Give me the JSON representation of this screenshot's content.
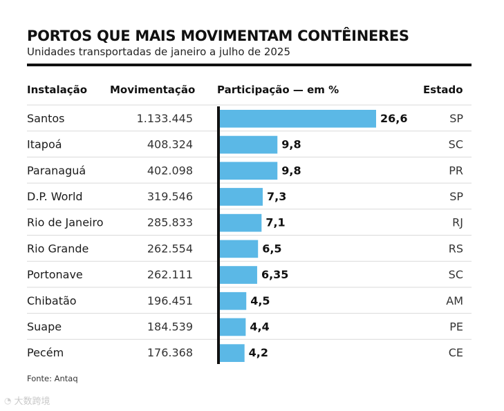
{
  "header": {
    "title": "PORTOS QUE MAIS MOVIMENTAM CONTÊINERES",
    "subtitle": "Unidades transportadas de janeiro a julho de 2025"
  },
  "columns": {
    "installation": "Instalação",
    "movement": "Movimentação",
    "share": "Participação — em %",
    "state": "Estado"
  },
  "chart_data": {
    "type": "bar",
    "orientation": "horizontal",
    "title": "PORTOS QUE MAIS MOVIMENTAM CONTÊINERES",
    "subtitle": "Unidades transportadas de janeiro a julho de 2025",
    "xlabel": "Participação — em %",
    "categories": [
      "Santos",
      "Itapoá",
      "Paranaguá",
      "D.P. World",
      "Rio de Janeiro",
      "Rio Grande",
      "Portonave",
      "Chibatão",
      "Suape",
      "Pecém"
    ],
    "values": [
      26.6,
      9.8,
      9.8,
      7.3,
      7.1,
      6.5,
      6.35,
      4.5,
      4.4,
      4.2
    ],
    "value_labels": [
      "26,6",
      "9,8",
      "9,8",
      "7,3",
      "7,1",
      "6,5",
      "6,35",
      "4,5",
      "4,4",
      "4,2"
    ],
    "movimentacao": [
      "1.133.445",
      "408.324",
      "402.098",
      "319.546",
      "285.833",
      "262.554",
      "262.111",
      "196.451",
      "184.539",
      "176.368"
    ],
    "estado": [
      "SP",
      "SC",
      "PR",
      "SP",
      "RJ",
      "RS",
      "SC",
      "AM",
      "PE",
      "CE"
    ],
    "xlim": [
      0,
      26.6
    ],
    "bar_color": "#5bb8e6"
  },
  "footer": {
    "source": "Fonte: Antaq",
    "watermark": "大数跨境"
  }
}
